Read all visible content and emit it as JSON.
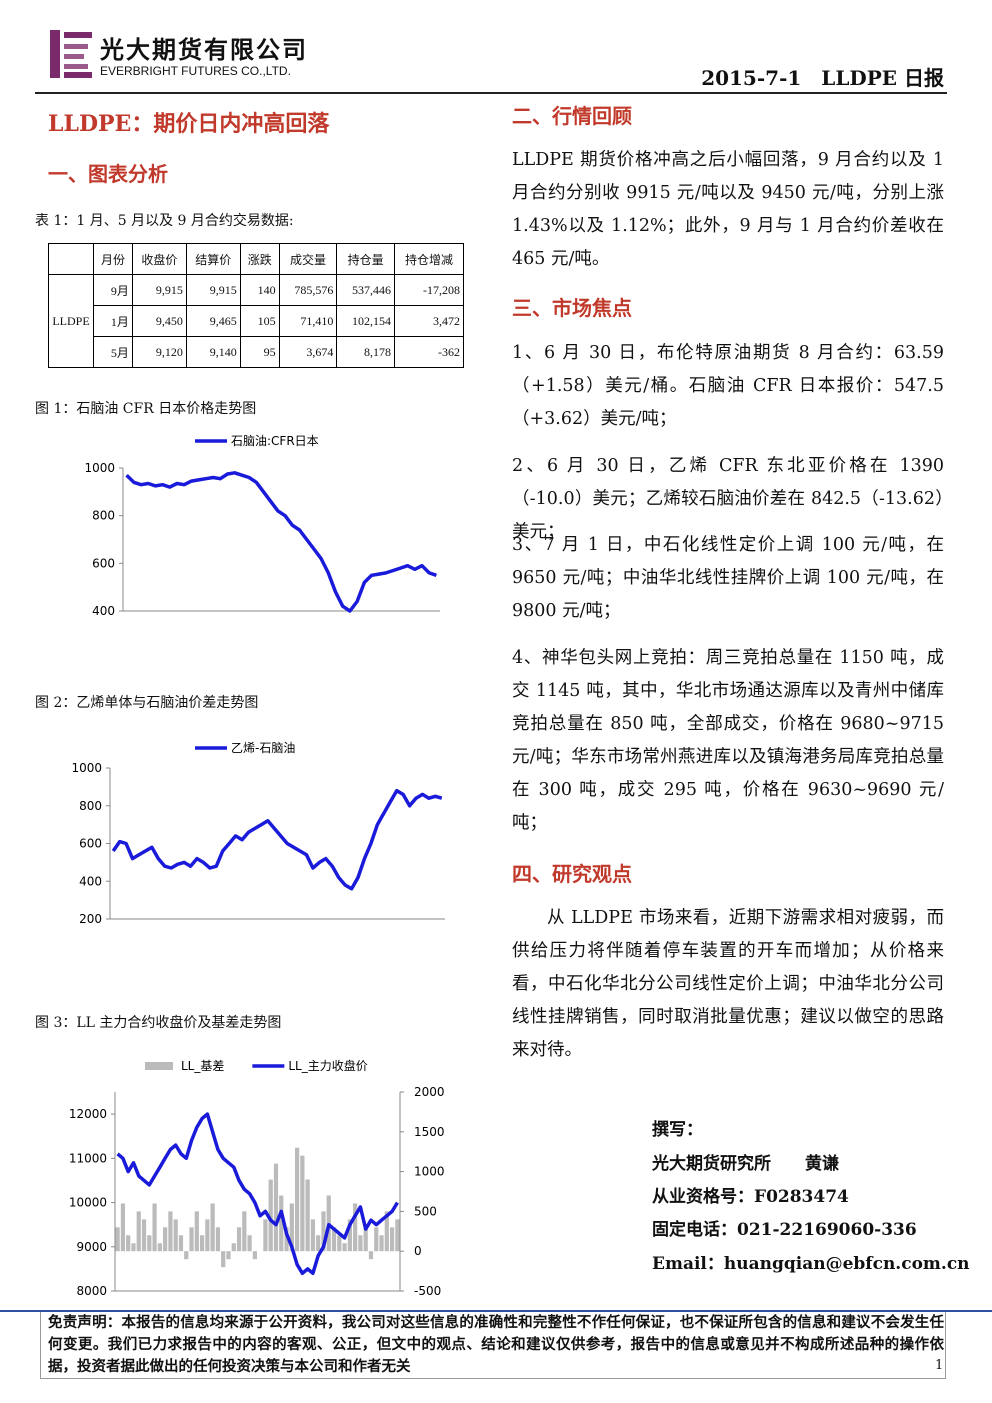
{
  "header": {
    "company_cn": "光大期货有限公司",
    "company_en": "EVERBRIGHT FUTURES CO.,LTD.",
    "date_title": "2015-7-1　LLDPE 日报"
  },
  "title": "LLDPE：期价日内冲高回落",
  "left": {
    "section": "一、图表分析",
    "table": {
      "caption": "表 1：1 月、5 月以及 9 月合约交易数据:",
      "headers": [
        "月份",
        "收盘价",
        "结算价",
        "涨跌",
        "成交量",
        "持仓量",
        "持仓增减"
      ],
      "group": "LLDPE",
      "rows": [
        [
          "9月",
          "9,915",
          "9,915",
          "140",
          "785,576",
          "537,446",
          "-17,208"
        ],
        [
          "1月",
          "9,450",
          "9,465",
          "105",
          "71,410",
          "102,154",
          "3,472"
        ],
        [
          "5月",
          "9,120",
          "9,140",
          "95",
          "3,674",
          "8,178",
          "-362"
        ]
      ]
    },
    "figures": [
      {
        "caption": "图 1：石脑油 CFR 日本价格走势图",
        "chart_data": {
          "type": "line",
          "ylim": [
            400,
            1000
          ],
          "yticks": [
            400,
            600,
            800,
            1000
          ],
          "series": [
            {
              "name": "石脑油:CFR日本",
              "color": "#1a1adb",
              "values": [
                970,
                940,
                930,
                935,
                925,
                930,
                920,
                935,
                930,
                945,
                950,
                955,
                960,
                955,
                975,
                980,
                970,
                960,
                940,
                900,
                860,
                820,
                800,
                760,
                740,
                700,
                660,
                620,
                560,
                480,
                420,
                400,
                440,
                520,
                550,
                555,
                560,
                570,
                580,
                590,
                575,
                590,
                560,
                550
              ]
            }
          ]
        }
      },
      {
        "caption": "图 2：乙烯单体与石脑油价差走势图",
        "chart_data": {
          "type": "line",
          "ylim": [
            200,
            1000
          ],
          "yticks": [
            200,
            400,
            600,
            800,
            1000
          ],
          "series": [
            {
              "name": "乙烯-石脑油",
              "color": "#1a1adb",
              "values": [
                560,
                610,
                600,
                520,
                540,
                560,
                580,
                520,
                480,
                470,
                490,
                500,
                480,
                520,
                500,
                470,
                480,
                560,
                600,
                640,
                620,
                660,
                680,
                700,
                720,
                680,
                640,
                600,
                580,
                560,
                540,
                470,
                500,
                520,
                480,
                420,
                380,
                360,
                420,
                520,
                600,
                700,
                760,
                820,
                880,
                860,
                800,
                840,
                860,
                840,
                850,
                840
              ]
            }
          ]
        }
      },
      {
        "caption": "图 3：LL 主力合约收盘价及基差走势图",
        "chart_data": {
          "type": "line",
          "ylim": [
            8000,
            12500
          ],
          "yticks": [
            8000,
            9000,
            10000,
            11000,
            12000
          ],
          "y2lim": [
            -500,
            2000
          ],
          "y2ticks": [
            -500,
            0,
            500,
            1000,
            1500,
            2000
          ],
          "series": [
            {
              "name": "LL_基差",
              "type": "bar",
              "axis": "y2",
              "color": "#bbbbbb",
              "values": [
                300,
                600,
                200,
                100,
                500,
                400,
                200,
                600,
                100,
                300,
                500,
                400,
                200,
                -100,
                300,
                500,
                200,
                400,
                600,
                300,
                -200,
                -100,
                100,
                300,
                500,
                200,
                -100,
                0,
                400,
                900,
                1100,
                700,
                300,
                600,
                1300,
                1200,
                900,
                400,
                200,
                500,
                700,
                300,
                200,
                100,
                400,
                600,
                200,
                300,
                -100,
                300,
                200,
                500,
                300,
                400
              ]
            },
            {
              "name": "LL_主力收盘价",
              "color": "#1a1adb",
              "values": [
                11100,
                11000,
                10700,
                10900,
                10600,
                10500,
                10400,
                10600,
                10800,
                11000,
                11200,
                11300,
                11100,
                11000,
                11400,
                11700,
                11900,
                12000,
                11600,
                11200,
                11000,
                10900,
                10800,
                10500,
                10300,
                10200,
                10000,
                9700,
                9800,
                9600,
                9500,
                9800,
                9300,
                9000,
                8600,
                8400,
                8500,
                8400,
                8800,
                9000,
                9500,
                9400,
                9300,
                9200,
                9500,
                9700,
                9900,
                9400,
                9600,
                9500,
                9600,
                9700,
                9800,
                10000
              ]
            }
          ]
        }
      }
    ]
  },
  "right": {
    "review": {
      "heading": "二、行情回顾",
      "text": "LLDPE 期货价格冲高之后小幅回落，9 月合约以及 1 月合约分别收 9915 元/吨以及 9450 元/吨，分别上涨 1.43%以及 1.12%；此外，9 月与 1 月合约价差收在 465 元/吨。"
    },
    "focus": {
      "heading": "三、市场焦点",
      "items": [
        "1、6 月 30 日，布伦特原油期货 8 月合约：63.59（+1.58）美元/桶。石脑油 CFR 日本报价：547.5（+3.62）美元/吨；",
        "2、6 月 30 日，乙烯 CFR 东北亚价格在 1390（-10.0）美元；乙烯较石脑油价差在 842.5（-13.62）美元；",
        "3、7 月 1 日，中石化线性定价上调 100 元/吨，在 9650 元/吨；中油华北线性挂牌价上调 100 元/吨，在 9800 元/吨；",
        "4、神华包头网上竞拍：周三竞拍总量在 1150 吨，成交 1145 吨，其中，华北市场通达源库以及青州中储库竞拍总量在 850 吨，全部成交，价格在 9680~9715 元/吨；华东市场常州燕进库以及镇海港务局库竞拍总量在 300 吨，成交 295 吨，价格在 9630~9690 元/吨；"
      ]
    },
    "view": {
      "heading": "四、研究观点",
      "text": "从 LLDPE 市场来看，近期下游需求相对疲弱，而供给压力将伴随着停车装置的开车而增加；从价格来看，中石化华北分公司线性定价上调；中油华北分公司线性挂牌销售，同时取消批量优惠；建议以做空的思路来对待。"
    }
  },
  "author": [
    "撰写：",
    "光大期货研究所　　黄谦",
    "从业资格号：F0283474",
    "固定电话：021-22169060-336",
    "Email：huangqian@ebfcn.com.cn"
  ],
  "footer": {
    "disclaimer": "免责声明：本报告的信息均来源于公开资料，我公司对这些信息的准确性和完整性不作任何保证，也不保证所包含的信息和建议不会发生任何变更。我们已力求报告中的内容的客观、公正，但文中的观点、结论和建议仅供参考，报告中的信息或意见并不构成所述品种的操作依据，投资者据此做出的任何投资决策与本公司和作者无关",
    "page": "1"
  }
}
